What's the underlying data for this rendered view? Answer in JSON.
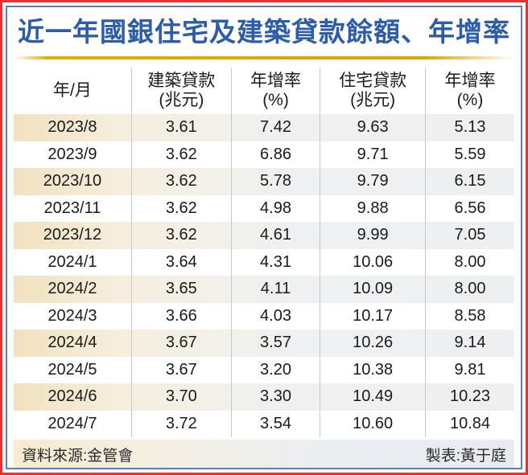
{
  "title": "近一年國銀住宅及建築貸款餘額、年增率",
  "footer": {
    "source": "資料來源:金管會",
    "credit": "製表:黃于庭"
  },
  "colors": {
    "title_blue": "#2c5caa",
    "outer_border_red": "#ee2e31",
    "inner_border_blue": "#5b7cba",
    "gold_rule": "#dfac00",
    "shaded_row_left": "#f1e2bf",
    "shaded_row_right": "#edeff1",
    "column_divider": "#c6c8ca"
  },
  "chart_data": {
    "type": "table",
    "title": "近一年國銀住宅及建築貸款餘額、年增率",
    "columns": [
      {
        "label": "年/月",
        "unit": ""
      },
      {
        "label": "建築貸款",
        "unit": "(兆元)"
      },
      {
        "label": "年增率",
        "unit": "(%)"
      },
      {
        "label": "住宅貸款",
        "unit": "(兆元)"
      },
      {
        "label": "年增率",
        "unit": "(%)"
      }
    ],
    "rows": [
      [
        "2023/8",
        "3.61",
        "7.42",
        "9.63",
        "5.13"
      ],
      [
        "2023/9",
        "3.62",
        "6.86",
        "9.71",
        "5.59"
      ],
      [
        "2023/10",
        "3.62",
        "5.78",
        "9.79",
        "6.15"
      ],
      [
        "2023/11",
        "3.62",
        "4.98",
        "9.88",
        "6.56"
      ],
      [
        "2023/12",
        "3.62",
        "4.61",
        "9.99",
        "7.05"
      ],
      [
        "2024/1",
        "3.64",
        "4.31",
        "10.06",
        "8.00"
      ],
      [
        "2024/2",
        "3.65",
        "4.11",
        "10.09",
        "8.00"
      ],
      [
        "2024/3",
        "3.66",
        "4.03",
        "10.17",
        "8.58"
      ],
      [
        "2024/4",
        "3.67",
        "3.57",
        "10.26",
        "9.14"
      ],
      [
        "2024/5",
        "3.67",
        "3.20",
        "10.38",
        "9.81"
      ],
      [
        "2024/6",
        "3.70",
        "3.30",
        "10.49",
        "10.23"
      ],
      [
        "2024/7",
        "3.72",
        "3.54",
        "10.60",
        "10.84"
      ]
    ]
  }
}
